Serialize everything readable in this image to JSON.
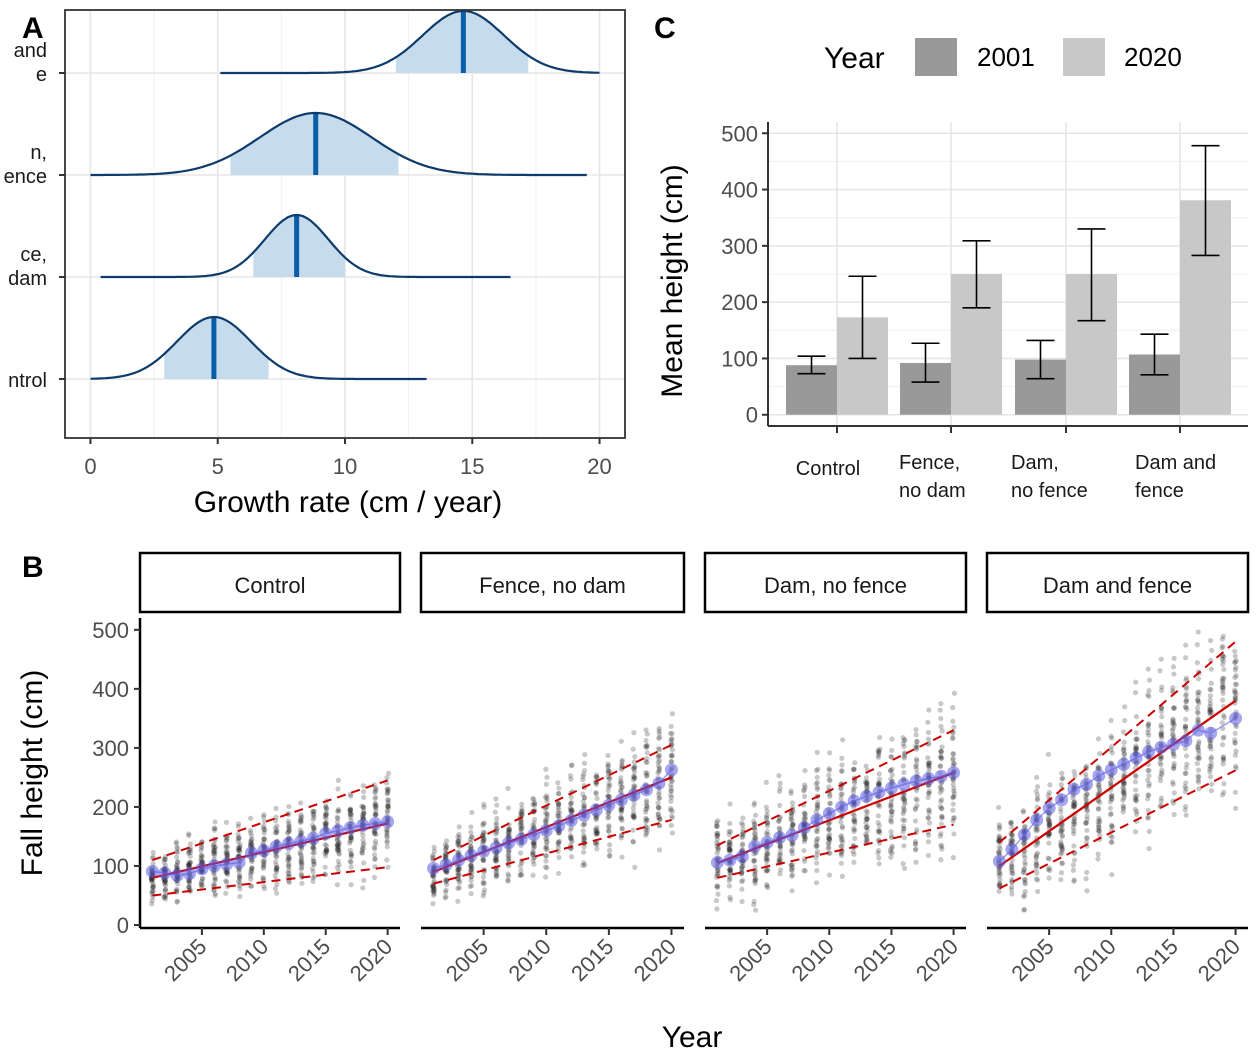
{
  "panels": {
    "A": "A",
    "B": "B",
    "C": "C"
  },
  "chart_data": [
    {
      "panel": "A",
      "type": "ridgeline",
      "xlabel": "Growth rate (cm / year)",
      "ylabel": "",
      "xlim": [
        -1,
        21
      ],
      "xticks": [
        "0",
        "5",
        "10",
        "15",
        "20"
      ],
      "xtick_values": [
        0,
        5,
        10,
        15,
        20
      ],
      "grid": true,
      "categories": [
        {
          "label_lines": [
            "and",
            "e"
          ],
          "full_name": "Dam and fence",
          "mean": 14.65,
          "interval": [
            12.0,
            17.2
          ],
          "sd": 1.6,
          "range": [
            5.1,
            20.0
          ]
        },
        {
          "label_lines": [
            "n,",
            "ence"
          ],
          "full_name": "Dam, no fence",
          "mean": 8.85,
          "interval": [
            5.5,
            12.1
          ],
          "sd": 2.2,
          "range": [
            0.0,
            19.5
          ]
        },
        {
          "label_lines": [
            "ce,",
            "dam"
          ],
          "full_name": "Fence, no dam",
          "mean": 8.1,
          "interval": [
            6.4,
            10.0
          ],
          "sd": 1.25,
          "range": [
            0.4,
            16.5
          ]
        },
        {
          "label_lines": [
            "ntrol"
          ],
          "full_name": "Control",
          "mean": 4.85,
          "interval": [
            2.9,
            7.0
          ],
          "sd": 1.45,
          "range": [
            0.0,
            13.2
          ]
        }
      ],
      "colors": {
        "line": "#0d3b6b",
        "fill": "#c6dbeb",
        "mean_line": "#0a5ea8"
      }
    },
    {
      "panel": "C",
      "type": "bar",
      "legend_title": "Year",
      "legend_position": "top",
      "ylabel": "Mean height (cm)",
      "ylim": [
        -20,
        520
      ],
      "yticks": [
        "0",
        "100",
        "200",
        "300",
        "400",
        "500"
      ],
      "ytick_values": [
        0,
        100,
        200,
        300,
        400,
        500
      ],
      "categories": [
        [
          "Control"
        ],
        [
          "Fence,",
          "no dam"
        ],
        [
          "Dam,",
          "no fence"
        ],
        [
          "Dam and",
          "fence"
        ]
      ],
      "series": [
        {
          "name": "2001",
          "color": "#999999",
          "values": [
            88,
            92,
            98,
            107
          ],
          "err_low": [
            73,
            58,
            64,
            71
          ],
          "err_high": [
            104,
            127,
            132,
            143
          ]
        },
        {
          "name": "2020",
          "color": "#c8c8c8",
          "values": [
            173,
            250,
            250,
            381
          ],
          "err_low": [
            100,
            190,
            167,
            283
          ],
          "err_high": [
            246,
            309,
            330,
            478
          ]
        }
      ]
    },
    {
      "panel": "B",
      "type": "scatter",
      "xlabel": "Year",
      "ylabel": "Fall height (cm)",
      "xlim": [
        2000,
        2021
      ],
      "ylim": [
        -5,
        520
      ],
      "xticks": [
        "2005",
        "2010",
        "2015",
        "2020"
      ],
      "xtick_values": [
        2005,
        2010,
        2015,
        2020
      ],
      "yticks": [
        "0",
        "100",
        "200",
        "300",
        "400",
        "500"
      ],
      "ytick_values": [
        0,
        100,
        200,
        300,
        400,
        500
      ],
      "colors": {
        "points": "#222222",
        "means": "#5c5ce6",
        "trend": "#cc0000"
      },
      "facets": [
        {
          "name": "Control",
          "trend": [
            [
              2001,
              80
            ],
            [
              2020,
              172
            ]
          ],
          "upper": [
            [
              2001,
              110
            ],
            [
              2020,
              245
            ]
          ],
          "lower": [
            [
              2001,
              50
            ],
            [
              2020,
              98
            ]
          ],
          "spread": 30,
          "last_year": 2020,
          "means": [
            91,
            88,
            84,
            87,
            95,
            100,
            103,
            106,
            122,
            126,
            133,
            138,
            142,
            147,
            155,
            160,
            165,
            169,
            172,
            175
          ]
        },
        {
          "name": "Fence, no dam",
          "trend": [
            [
              2001,
              90
            ],
            [
              2020,
              250
            ]
          ],
          "upper": [
            [
              2001,
              110
            ],
            [
              2020,
              305
            ]
          ],
          "lower": [
            [
              2001,
              70
            ],
            [
              2020,
              178
            ]
          ],
          "spread": 38,
          "last_year": 2020,
          "means": [
            96,
            102,
            110,
            118,
            125,
            131,
            139,
            145,
            153,
            160,
            168,
            177,
            186,
            195,
            203,
            212,
            220,
            229,
            240,
            263
          ]
        },
        {
          "name": "Dam, no fence",
          "trend": [
            [
              2001,
              105
            ],
            [
              2020,
              258
            ]
          ],
          "upper": [
            [
              2001,
              135
            ],
            [
              2020,
              330
            ]
          ],
          "lower": [
            [
              2001,
              80
            ],
            [
              2020,
              170
            ]
          ],
          "spread": 45,
          "last_year": 2020,
          "means": [
            106,
            110,
            116,
            133,
            140,
            148,
            152,
            165,
            178,
            189,
            200,
            210,
            218,
            225,
            232,
            238,
            244,
            248,
            252,
            258
          ]
        },
        {
          "name": "Dam and fence",
          "trend": [
            [
              2001,
              100
            ],
            [
              2020,
              380
            ]
          ],
          "upper": [
            [
              2001,
              140
            ],
            [
              2020,
              480
            ]
          ],
          "lower": [
            [
              2001,
              62
            ],
            [
              2020,
              262
            ]
          ],
          "spread": 55,
          "last_year": 2018,
          "means": [
            108,
            128,
            153,
            178,
            198,
            212,
            230,
            238,
            253,
            263,
            272,
            283,
            293,
            301,
            306,
            312,
            330,
            325,
            350
          ]
        }
      ]
    }
  ]
}
